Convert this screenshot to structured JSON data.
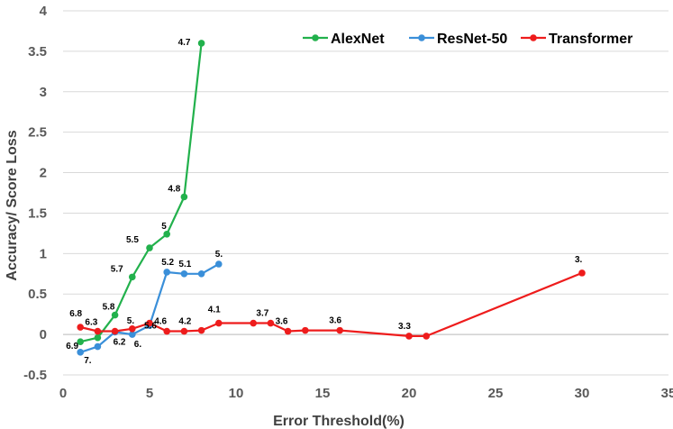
{
  "chart_data": {
    "type": "line",
    "xlabel": "Error Threshold(%)",
    "ylabel": "Accuracy/ Score Loss",
    "xlim": [
      0,
      35
    ],
    "ylim": [
      -0.5,
      4
    ],
    "xticks": [
      0,
      5,
      10,
      15,
      20,
      25,
      30,
      35
    ],
    "yticks": [
      -0.5,
      0,
      0.5,
      1,
      1.5,
      2,
      2.5,
      3,
      3.5,
      4
    ],
    "ytick_labels": [
      "-0.5",
      "0",
      "0.5",
      "1",
      "1.5",
      "2",
      "2.5",
      "3",
      "3.5",
      "4"
    ],
    "grid": "horizontal",
    "legend_position": "top-right",
    "series": [
      {
        "name": "AlexNet",
        "color": "#22b14c",
        "x": [
          1,
          2,
          3,
          4,
          5,
          6,
          7,
          8
        ],
        "y": [
          -0.09,
          -0.04,
          0.24,
          0.71,
          1.07,
          1.24,
          1.7,
          3.6
        ],
        "labels": [
          "6.9",
          "6.3",
          "5.8",
          "5.7",
          "5.5",
          "5",
          "4.8",
          "4.7"
        ]
      },
      {
        "name": "ResNet-50",
        "color": "#3a8fd9",
        "x": [
          1,
          2,
          3,
          4,
          5,
          6,
          7,
          8,
          9
        ],
        "y": [
          -0.22,
          -0.15,
          0.03,
          0.0,
          0.11,
          0.77,
          0.75,
          0.75,
          0.87
        ],
        "labels": [
          "7.",
          "",
          "6.2",
          "6.",
          "",
          "5.2",
          "5.1",
          "",
          "5."
        ]
      },
      {
        "name": "Transformer",
        "color": "#ee1c1c",
        "x": [
          1,
          2,
          3,
          4,
          5,
          6,
          7,
          8,
          9,
          11,
          12,
          13,
          14,
          16,
          20,
          21,
          30
        ],
        "y": [
          0.09,
          0.04,
          0.04,
          0.07,
          0.14,
          0.04,
          0.04,
          0.05,
          0.14,
          0.14,
          0.14,
          0.04,
          0.05,
          0.05,
          -0.02,
          -0.02,
          0.76
        ],
        "labels": [
          "6.8",
          "",
          "",
          "5.",
          "5.6",
          "4.6",
          "4.2",
          "",
          "4.1",
          "",
          "3.7",
          "3.6",
          "",
          "3.6",
          "3.3",
          "",
          "3."
        ]
      }
    ]
  }
}
